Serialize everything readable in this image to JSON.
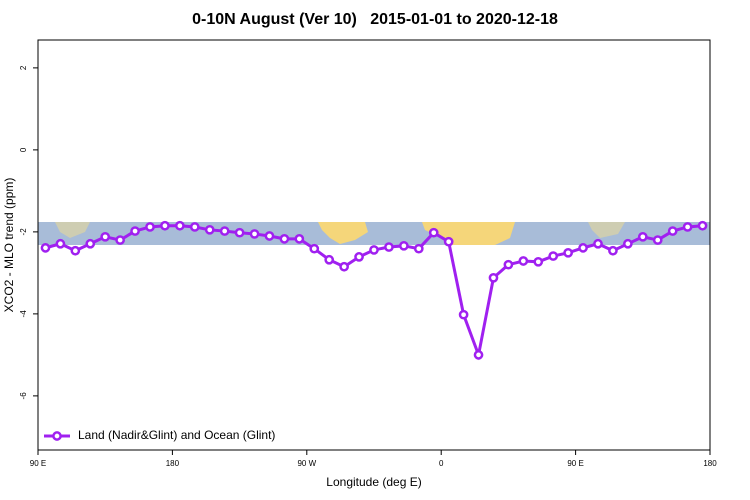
{
  "chart_data": {
    "type": "line",
    "title": "0-10N August (Ver 10)   2015-01-01 to 2020-12-18",
    "x_label": "Longitude (deg E)",
    "y_label": "XCO2 - MLO trend (ppm)",
    "xlim": [
      90,
      540
    ],
    "ylim": [
      -7.32,
      2.68
    ],
    "xticks": [
      {
        "value": 90,
        "label": "90 E"
      },
      180,
      {
        "value": 270,
        "label": "90 W"
      },
      {
        "value": 360,
        "label": "0"
      },
      {
        "value": 450,
        "label": "90 E"
      },
      {
        "value": 540,
        "label": "180"
      }
    ],
    "yticks": [
      -6,
      -4,
      -2,
      0,
      2
    ],
    "grid": false,
    "legend": "bottom-left",
    "x": [
      95,
      105,
      115,
      125,
      135,
      145,
      155,
      165,
      175,
      185,
      195,
      205,
      215,
      225,
      235,
      245,
      255,
      265,
      275,
      285,
      295,
      305,
      315,
      325,
      335,
      345,
      355,
      365,
      375,
      385,
      395,
      405,
      415,
      425,
      435,
      445,
      455,
      465,
      475,
      485,
      495,
      505,
      515,
      525,
      535
    ],
    "series": [
      {
        "name": "Land (Nadir&Glint) and Ocean (Glint)",
        "color": "#a020f0",
        "values": [
          -2.39,
          -2.29,
          -2.46,
          -2.29,
          -2.12,
          -2.2,
          -1.98,
          -1.88,
          -1.85,
          -1.85,
          -1.88,
          -1.95,
          -1.98,
          -2.02,
          -2.05,
          -2.1,
          -2.17,
          -2.17,
          -2.41,
          -2.68,
          -2.85,
          -2.61,
          -2.44,
          -2.37,
          -2.34,
          -2.41,
          -2.02,
          -2.24,
          -4.02,
          -5.0,
          -3.12,
          -2.8,
          -2.71,
          -2.73,
          -2.59,
          -2.51,
          -2.39,
          -2.29,
          -2.46,
          -2.29,
          -2.12,
          -2.2,
          -1.98,
          -1.88,
          -1.85
        ]
      }
    ]
  }
}
